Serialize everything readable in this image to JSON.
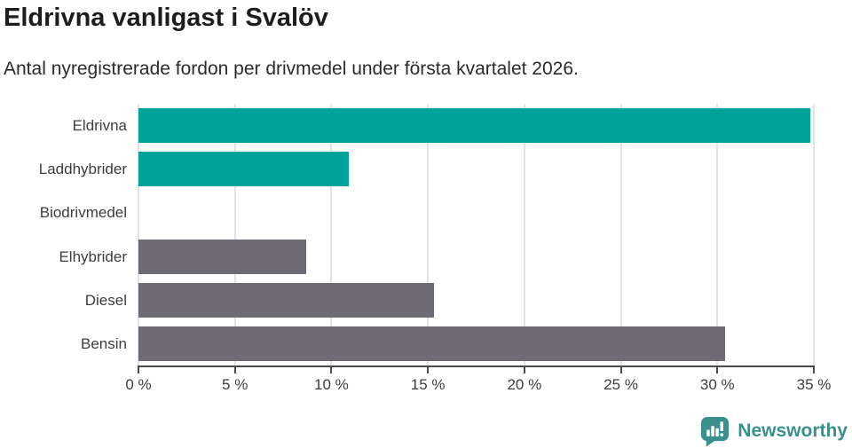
{
  "header": {
    "title": "Eldrivna vanligast i Svalöv",
    "subtitle": "Antal nyregistrerade fordon per drivmedel under första kvartalet 2026."
  },
  "chart_data": {
    "type": "bar",
    "orientation": "horizontal",
    "title": "Eldrivna vanligast i Svalöv",
    "subtitle": "Antal nyregistrerade fordon per drivmedel under första kvartalet 2026.",
    "categories": [
      "Eldrivna",
      "Laddhybrider",
      "Biodrivmedel",
      "Elhybrider",
      "Diesel",
      "Bensin"
    ],
    "values": [
      34.8,
      10.9,
      0,
      8.7,
      15.3,
      30.4
    ],
    "unit": "%",
    "bar_colors": [
      "#00a29a",
      "#00a29a",
      "#00a29a",
      "#6f6b76",
      "#6f6b76",
      "#6f6b76"
    ],
    "xlim": [
      0,
      35
    ],
    "x_tick_values": [
      0,
      5,
      10,
      15,
      20,
      25,
      30,
      35
    ],
    "x_tick_labels": [
      "0 %",
      "5 %",
      "10 %",
      "15 %",
      "20 %",
      "25 %",
      "30 %",
      "35 %"
    ],
    "grid": true,
    "legend": false
  },
  "footer": {
    "brand": "Newsworthy",
    "logo_icon": "newsworthy-chart-bubble-icon",
    "brand_color": "#38908c"
  },
  "colors": {
    "teal": "#00a29a",
    "gray": "#6f6b76",
    "gridline": "#e3e3e3",
    "axis": "#4a4a4e",
    "label_text": "#3d3d3d",
    "title_text": "#1d1d1d"
  }
}
